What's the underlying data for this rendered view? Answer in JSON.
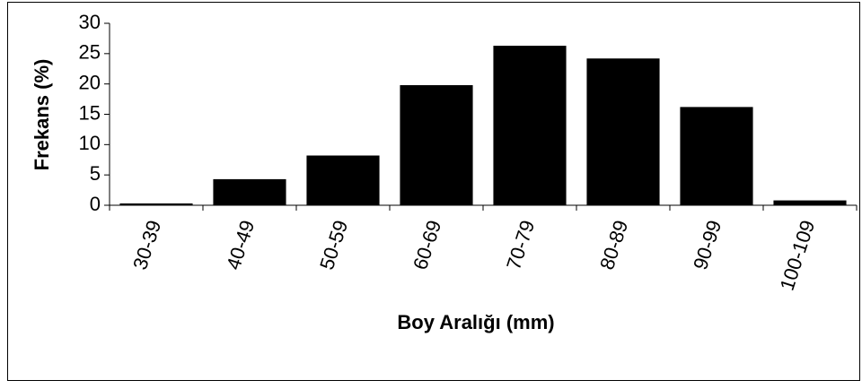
{
  "chart_data": {
    "type": "bar",
    "x_label": "Boy Aralığı (mm)",
    "y_label": "Frekans (%)",
    "categories": [
      "30-39",
      "40-49",
      "50-59",
      "60-69",
      "70-79",
      "80-89",
      "90-99",
      "100-109"
    ],
    "values": [
      0.3,
      4.3,
      8.2,
      19.8,
      26.3,
      24.2,
      16.2,
      0.8
    ],
    "color": "#000000",
    "ylim": [
      0,
      30
    ],
    "yticks": [
      0,
      5,
      10,
      15,
      20,
      25,
      30
    ],
    "grid": false
  }
}
